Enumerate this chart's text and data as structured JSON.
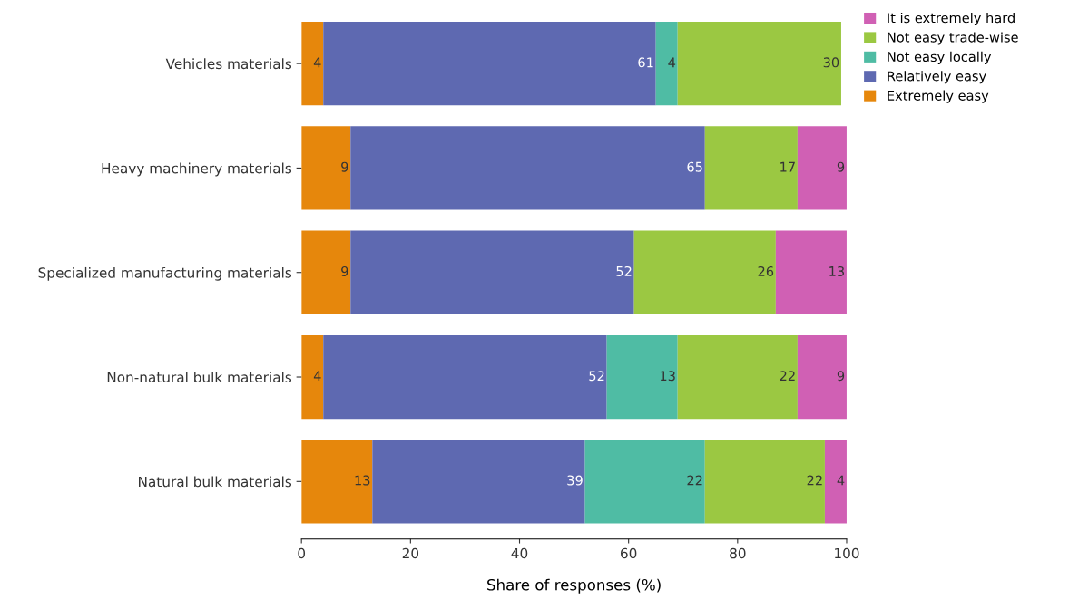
{
  "chart_data": {
    "type": "bar",
    "orientation": "horizontal",
    "stacked": true,
    "xlabel": "Share of responses (%)",
    "categories": [
      "Vehicles materials",
      "Heavy machinery materials",
      "Specialized manufacturing materials",
      "Non-natural bulk materials",
      "Natural bulk materials"
    ],
    "series": [
      {
        "name": "Extremely easy",
        "color": "#e6870c",
        "values": [
          4,
          9,
          9,
          4,
          13
        ]
      },
      {
        "name": "Relatively easy",
        "color": "#5e69b1",
        "values": [
          61,
          65,
          52,
          52,
          39
        ]
      },
      {
        "name": "Not easy locally",
        "color": "#4fbca4",
        "values": [
          4,
          null,
          null,
          13,
          22
        ]
      },
      {
        "name": "Not easy trade-wise",
        "color": "#9bc842",
        "values": [
          30,
          17,
          26,
          22,
          22
        ]
      },
      {
        "name": "It is extremely hard",
        "color": "#d060b4",
        "values": [
          null,
          9,
          13,
          9,
          4
        ]
      }
    ],
    "xlim": [
      0,
      100
    ],
    "xticks": [
      0,
      20,
      40,
      60,
      80,
      100
    ],
    "data_labels": true,
    "grid": false,
    "legend": "top right"
  }
}
